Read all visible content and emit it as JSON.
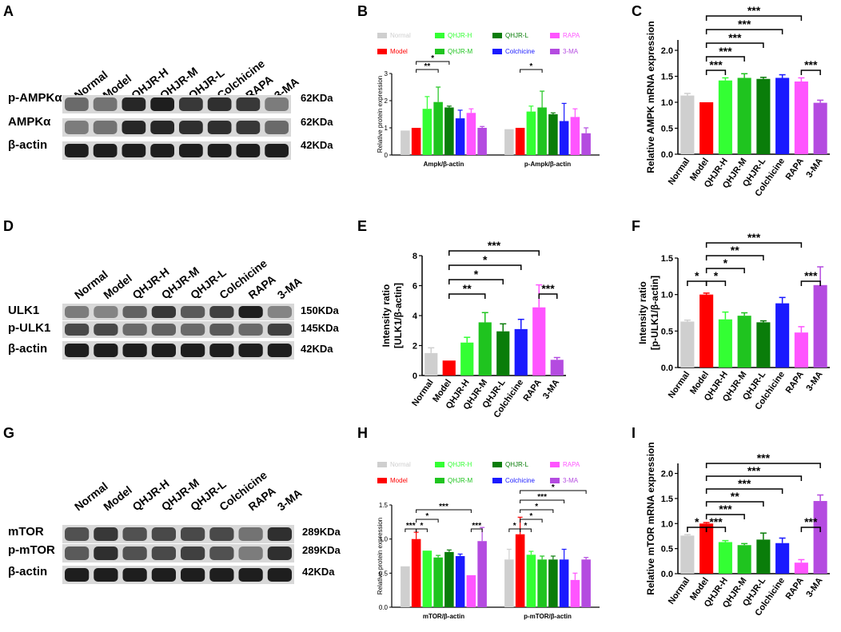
{
  "figure": {
    "panel_letters": [
      "A",
      "B",
      "C",
      "D",
      "E",
      "F",
      "G",
      "H",
      "I"
    ]
  },
  "colors": {
    "Normal": "#cfcfcf",
    "Model": "#ff0000",
    "QHJR-H": "#33ff33",
    "QHJR-M": "#1fc41f",
    "QHJR-L": "#0a7d0a",
    "Colchicine": "#1a1aff",
    "RAPA": "#ff55ff",
    "3-MA": "#b44be0",
    "black": "#000000"
  },
  "blots": [
    {
      "panel": "A",
      "lanes": [
        "Normal",
        "Model",
        "QHJR-H",
        "QHJR-M",
        "QHJR-L",
        "Colchicine",
        "RAPA",
        "3-MA"
      ],
      "rows": [
        {
          "label": "p-AMPKα",
          "kda": "62KDa",
          "intensity": [
            0.55,
            0.5,
            0.95,
            1.0,
            0.85,
            0.9,
            0.85,
            0.45
          ]
        },
        {
          "label": "AMPKα",
          "kda": "62KDa",
          "intensity": [
            0.45,
            0.5,
            0.95,
            0.95,
            0.9,
            0.9,
            0.85,
            0.55
          ]
        },
        {
          "label": "β-actin",
          "kda": "42KDa",
          "intensity": [
            1,
            1,
            1,
            1,
            1,
            1,
            1,
            1
          ]
        }
      ]
    },
    {
      "panel": "D",
      "lanes": [
        "Normal",
        "Model",
        "QHJR-H",
        "QHJR-M",
        "QHJR-L",
        "Colchicine",
        "RAPA",
        "3-MA"
      ],
      "rows": [
        {
          "label": "ULK1",
          "kda": "150KDa",
          "intensity": [
            0.45,
            0.4,
            0.6,
            0.85,
            0.65,
            0.8,
            1.0,
            0.4
          ]
        },
        {
          "label": "p-ULK1",
          "kda": "145KDa",
          "intensity": [
            0.75,
            0.75,
            0.55,
            0.6,
            0.55,
            0.65,
            0.55,
            0.8
          ]
        },
        {
          "label": "β-actin",
          "kda": "42KDa",
          "intensity": [
            1,
            1,
            1,
            1,
            1,
            1,
            1,
            1
          ]
        }
      ]
    },
    {
      "panel": "G",
      "lanes": [
        "Normal",
        "Model",
        "QHJR-H",
        "QHJR-M",
        "QHJR-L",
        "Colchicine",
        "RAPA",
        "3-MA"
      ],
      "rows": [
        {
          "label": "mTOR",
          "kda": "289KDa",
          "intensity": [
            0.7,
            0.85,
            0.7,
            0.75,
            0.75,
            0.75,
            0.5,
            0.9
          ]
        },
        {
          "label": "p-mTOR",
          "kda": "289KDa",
          "intensity": [
            0.65,
            0.9,
            0.7,
            0.75,
            0.8,
            0.7,
            0.45,
            0.9
          ]
        },
        {
          "label": "β-actin",
          "kda": "42KDa",
          "intensity": [
            1,
            1,
            1,
            1,
            1,
            1,
            1,
            1
          ]
        }
      ]
    }
  ],
  "chart_data": [
    {
      "panel": "B",
      "type": "bar",
      "legend": [
        "Normal",
        "Model",
        "QHJR-H",
        "QHJR-M",
        "QHJR-L",
        "Colchicine",
        "RAPA",
        "3-MA"
      ],
      "groups": [
        "Ampk/β-actin",
        "p-Ampk/β-actin"
      ],
      "series": [
        {
          "name": "Normal",
          "values": [
            0.9,
            0.95
          ],
          "errors": [
            0,
            0
          ]
        },
        {
          "name": "Model",
          "values": [
            1.0,
            1.0
          ],
          "errors": [
            0,
            0
          ]
        },
        {
          "name": "QHJR-H",
          "values": [
            1.7,
            1.6
          ],
          "errors": [
            0.45,
            0.2
          ]
        },
        {
          "name": "QHJR-M",
          "values": [
            1.95,
            1.75
          ],
          "errors": [
            0.55,
            0.6
          ]
        },
        {
          "name": "QHJR-L",
          "values": [
            1.75,
            1.5
          ],
          "errors": [
            0.05,
            0.05
          ]
        },
        {
          "name": "Colchicine",
          "values": [
            1.35,
            1.25
          ],
          "errors": [
            0.3,
            0.65
          ]
        },
        {
          "name": "RAPA",
          "values": [
            1.55,
            1.4
          ],
          "errors": [
            0.15,
            0.3
          ]
        },
        {
          "name": "3-MA",
          "values": [
            1.0,
            0.8
          ],
          "errors": [
            0.05,
            0.2
          ]
        }
      ],
      "ylabel": "Relative protein expression",
      "ylim": [
        0,
        3
      ],
      "yticks": [
        0,
        1,
        2,
        3
      ],
      "significance": [
        {
          "group": 0,
          "from": 1,
          "to": 3,
          "label": "**",
          "level": 0
        },
        {
          "group": 0,
          "from": 1,
          "to": 4,
          "label": "*",
          "level": 1
        },
        {
          "group": 1,
          "from": 1,
          "to": 3,
          "label": "*",
          "level": 0
        }
      ]
    },
    {
      "panel": "C",
      "type": "bar",
      "categories": [
        "Normal",
        "Model",
        "QHJR-H",
        "QHJR-M",
        "QHJR-L",
        "Colchicine",
        "RAPA",
        "3-MA"
      ],
      "values": [
        1.13,
        1.0,
        1.42,
        1.47,
        1.45,
        1.47,
        1.4,
        0.99
      ],
      "errors": [
        0.04,
        0,
        0.05,
        0.08,
        0.03,
        0.06,
        0.07,
        0.05
      ],
      "ylabel": "Relative AMPK mRNA expression",
      "ylim": [
        0,
        2.2
      ],
      "yticks": [
        0.0,
        0.5,
        1.0,
        1.5,
        2.0
      ],
      "significance": [
        {
          "from": 1,
          "to": 2,
          "label": "***",
          "level": 0
        },
        {
          "from": 1,
          "to": 3,
          "label": "***",
          "level": 1
        },
        {
          "from": 1,
          "to": 4,
          "label": "***",
          "level": 2
        },
        {
          "from": 1,
          "to": 5,
          "label": "***",
          "level": 3
        },
        {
          "from": 1,
          "to": 6,
          "label": "***",
          "level": 4
        },
        {
          "from": 6,
          "to": 7,
          "label": "***",
          "level": 0
        }
      ]
    },
    {
      "panel": "E",
      "type": "bar",
      "categories": [
        "Normal",
        "Model",
        "QHJR-H",
        "QHJR-M",
        "QHJR-L",
        "Colchicine",
        "RAPA",
        "3-MA"
      ],
      "values": [
        1.5,
        1.0,
        2.2,
        3.55,
        2.95,
        3.1,
        4.55,
        1.05
      ],
      "errors": [
        0.35,
        0,
        0.35,
        0.65,
        0.5,
        0.65,
        1.5,
        0.15
      ],
      "ylabel": "Intensity ratio",
      "ylabel2": "[ULK1/β-actin]",
      "ylim": [
        0,
        8
      ],
      "yticks": [
        0,
        2,
        4,
        6,
        8
      ],
      "significance": [
        {
          "from": 1,
          "to": 3,
          "label": "**",
          "level": 0
        },
        {
          "from": 1,
          "to": 4,
          "label": "*",
          "level": 1
        },
        {
          "from": 1,
          "to": 5,
          "label": "*",
          "level": 2
        },
        {
          "from": 1,
          "to": 6,
          "label": "***",
          "level": 3
        },
        {
          "from": 6,
          "to": 7,
          "label": "***",
          "level": 0
        }
      ]
    },
    {
      "panel": "F",
      "type": "bar",
      "categories": [
        "Normal",
        "Model",
        "QHJR-H",
        "QHJR-M",
        "QHJR-L",
        "Colchicine",
        "RAPA",
        "3-MA"
      ],
      "values": [
        0.63,
        1.0,
        0.66,
        0.71,
        0.62,
        0.88,
        0.48,
        1.13
      ],
      "errors": [
        0.02,
        0.02,
        0.1,
        0.04,
        0.02,
        0.08,
        0.08,
        0.25
      ],
      "ylabel": "Intensity ratio",
      "ylabel2": "[p-ULK1/β-actin]",
      "ylim": [
        0,
        1.5
      ],
      "yticks": [
        0.0,
        0.5,
        1.0,
        1.5
      ],
      "significance": [
        {
          "from": 0,
          "to": 1,
          "label": "*",
          "level": 0
        },
        {
          "from": 1,
          "to": 2,
          "label": "*",
          "level": 0
        },
        {
          "from": 1,
          "to": 3,
          "label": "*",
          "level": 1
        },
        {
          "from": 1,
          "to": 4,
          "label": "**",
          "level": 2
        },
        {
          "from": 1,
          "to": 6,
          "label": "***",
          "level": 3
        },
        {
          "from": 6,
          "to": 7,
          "label": "***",
          "level": 0
        }
      ]
    },
    {
      "panel": "H",
      "type": "bar",
      "legend": [
        "Normal",
        "Model",
        "QHJR-H",
        "QHJR-M",
        "QHJR-L",
        "Colchicine",
        "RAPA",
        "3-MA"
      ],
      "groups": [
        "mTOR/β-actin",
        "p-mTOR/β-actin"
      ],
      "series": [
        {
          "name": "Normal",
          "values": [
            0.6,
            0.7
          ],
          "errors": [
            0,
            0.15
          ]
        },
        {
          "name": "Model",
          "values": [
            1.0,
            1.07
          ],
          "errors": [
            0.1,
            0.25
          ]
        },
        {
          "name": "QHJR-H",
          "values": [
            0.83,
            0.77
          ],
          "errors": [
            0,
            0.05
          ]
        },
        {
          "name": "QHJR-M",
          "values": [
            0.73,
            0.7
          ],
          "errors": [
            0.03,
            0.05
          ]
        },
        {
          "name": "QHJR-L",
          "values": [
            0.81,
            0.7
          ],
          "errors": [
            0.03,
            0.05
          ]
        },
        {
          "name": "Colchicine",
          "values": [
            0.75,
            0.7
          ],
          "errors": [
            0.03,
            0.15
          ]
        },
        {
          "name": "RAPA",
          "values": [
            0.47,
            0.4
          ],
          "errors": [
            0,
            0.1
          ]
        },
        {
          "name": "3-MA",
          "values": [
            0.97,
            0.7
          ],
          "errors": [
            0.2,
            0.03
          ]
        }
      ],
      "ylabel": "Relative protein expression",
      "ylim": [
        0,
        1.5
      ],
      "yticks": [
        0.0,
        0.5,
        1.0,
        1.5
      ],
      "significance": [
        {
          "group": 0,
          "from": 0,
          "to": 1,
          "label": "***",
          "level": 0
        },
        {
          "group": 0,
          "from": 1,
          "to": 2,
          "label": "*",
          "level": 0
        },
        {
          "group": 0,
          "from": 1,
          "to": 3,
          "label": "*",
          "level": 1
        },
        {
          "group": 0,
          "from": 1,
          "to": 6,
          "label": "***",
          "level": 2
        },
        {
          "group": 0,
          "from": 6,
          "to": 7,
          "label": "***",
          "level": 0
        },
        {
          "group": 1,
          "from": 0,
          "to": 1,
          "label": "*",
          "level": 0
        },
        {
          "group": 1,
          "from": 1,
          "to": 2,
          "label": "*",
          "level": 0
        },
        {
          "group": 1,
          "from": 1,
          "to": 3,
          "label": "*",
          "level": 1
        },
        {
          "group": 1,
          "from": 1,
          "to": 4,
          "label": "*",
          "level": 2
        },
        {
          "group": 1,
          "from": 1,
          "to": 5,
          "label": "***",
          "level": 3
        },
        {
          "group": 1,
          "from": 1,
          "to": 7,
          "label": "*",
          "level": 4
        }
      ]
    },
    {
      "panel": "I",
      "type": "bar",
      "categories": [
        "Normal",
        "Model",
        "QHJR-H",
        "QHJR-M",
        "QHJR-L",
        "Colchicine",
        "RAPA",
        "3-MA"
      ],
      "values": [
        0.76,
        1.0,
        0.63,
        0.57,
        0.68,
        0.61,
        0.22,
        1.45
      ],
      "errors": [
        0.02,
        0.02,
        0.03,
        0.03,
        0.13,
        0.1,
        0.06,
        0.12
      ],
      "ylabel": "Relative mTOR mRNA expression",
      "ylim": [
        0,
        2.2
      ],
      "yticks": [
        0.0,
        0.5,
        1.0,
        1.5,
        2.0
      ],
      "significance": [
        {
          "from": 0,
          "to": 1,
          "label": "*",
          "level": 0
        },
        {
          "from": 1,
          "to": 2,
          "label": "***",
          "level": 0
        },
        {
          "from": 1,
          "to": 3,
          "label": "***",
          "level": 1
        },
        {
          "from": 1,
          "to": 4,
          "label": "**",
          "level": 2
        },
        {
          "from": 1,
          "to": 5,
          "label": "***",
          "level": 3
        },
        {
          "from": 1,
          "to": 6,
          "label": "***",
          "level": 4
        },
        {
          "from": 1,
          "to": 7,
          "label": "***",
          "level": 5
        },
        {
          "from": 6,
          "to": 7,
          "label": "***",
          "level": 0
        }
      ]
    }
  ]
}
